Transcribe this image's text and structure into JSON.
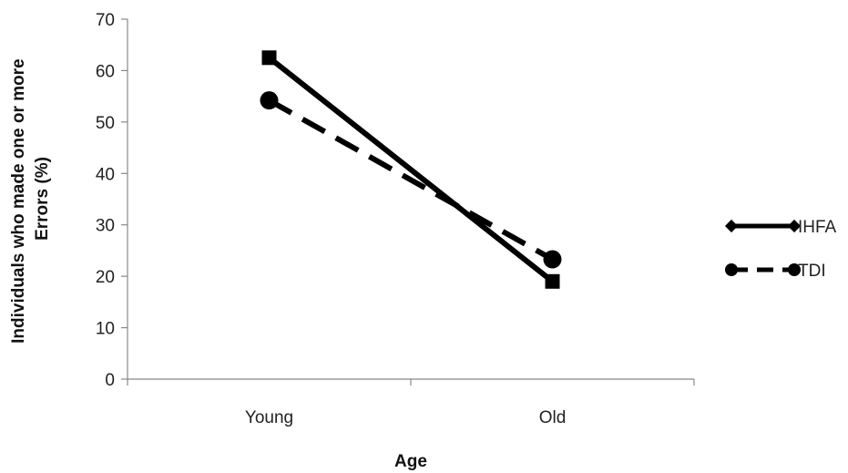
{
  "chart_data": {
    "type": "line",
    "categories": [
      "Young",
      "Old"
    ],
    "series": [
      {
        "name": "IHFA",
        "values": [
          62.5,
          19
        ],
        "marker": "square",
        "line_style": "solid"
      },
      {
        "name": "TDI",
        "values": [
          54.2,
          23.3
        ],
        "marker": "circle",
        "line_style": "dashed"
      }
    ],
    "xlabel": "Age",
    "ylabel_lines": [
      "Individuals who made one or more",
      "Errors  (%)"
    ],
    "ylim": [
      0,
      70
    ],
    "yticks": [
      "0",
      "10",
      "20",
      "30",
      "40",
      "50",
      "60",
      "70"
    ],
    "grid": false,
    "legend_position": "right",
    "line_color": "#000000"
  }
}
